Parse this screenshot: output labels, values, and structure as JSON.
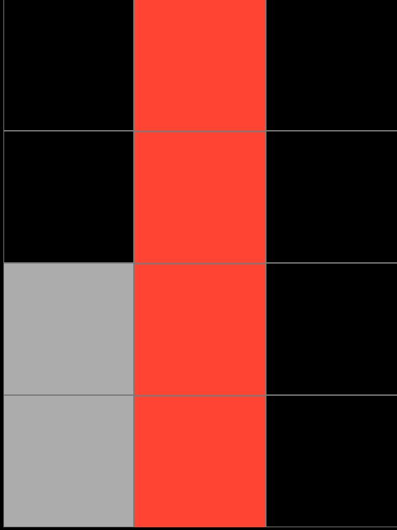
{
  "board": {
    "rows": 4,
    "cols": 3,
    "colors": {
      "empty": "#000000",
      "red": "#ff4433",
      "gray": "#acacac",
      "grid_line": "#7a7a7a"
    },
    "cells": [
      [
        "empty",
        "red",
        "empty"
      ],
      [
        "empty",
        "red",
        "empty"
      ],
      [
        "gray",
        "red",
        "empty"
      ],
      [
        "gray",
        "red",
        "empty"
      ]
    ]
  }
}
